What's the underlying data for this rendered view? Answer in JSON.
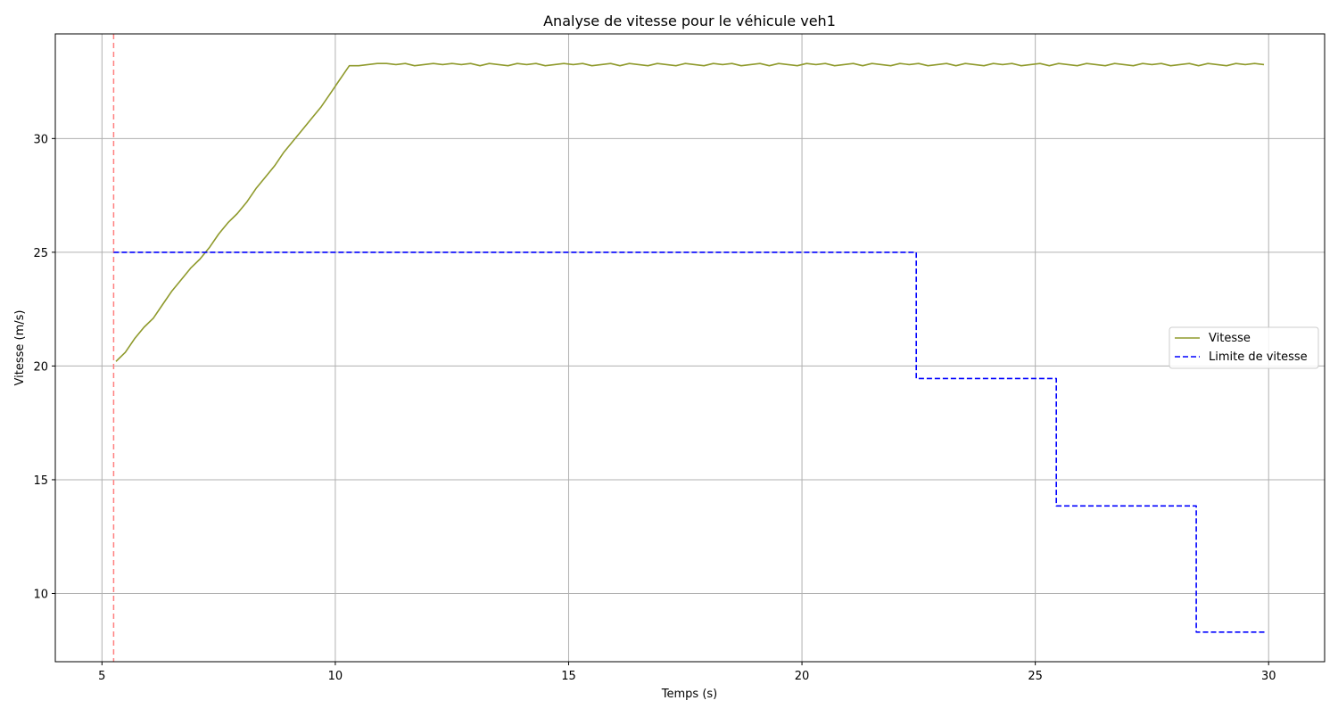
{
  "chart_data": {
    "type": "line",
    "title": "Analyse de vitesse pour le véhicule veh1",
    "xlabel": "Temps (s)",
    "ylabel": "Vitesse (m/s)",
    "xlim": [
      4.0,
      31.2
    ],
    "ylim": [
      7.0,
      34.6
    ],
    "xticks": [
      5,
      10,
      15,
      20,
      25,
      30
    ],
    "yticks": [
      10,
      15,
      20,
      25,
      30
    ],
    "grid": true,
    "legend_position": "center-right",
    "series": [
      {
        "name": "Vitesse",
        "color": "#8f9a2c",
        "style": "solid",
        "x": [
          5.3,
          5.5,
          5.7,
          5.9,
          6.1,
          6.3,
          6.5,
          6.7,
          6.9,
          7.1,
          7.3,
          7.5,
          7.7,
          7.9,
          8.1,
          8.3,
          8.5,
          8.7,
          8.9,
          9.1,
          9.3,
          9.5,
          9.7,
          9.9,
          10.1,
          10.3,
          10.5,
          10.7,
          10.9,
          11.1,
          11.3,
          11.5,
          11.7,
          11.9,
          12.1,
          12.3,
          12.5,
          12.7,
          12.9,
          13.1,
          13.3,
          13.5,
          13.7,
          13.9,
          14.1,
          14.3,
          14.5,
          14.7,
          14.9,
          15.1,
          15.3,
          15.5,
          15.7,
          15.9,
          16.1,
          16.3,
          16.5,
          16.7,
          16.9,
          17.1,
          17.3,
          17.5,
          17.7,
          17.9,
          18.1,
          18.3,
          18.5,
          18.7,
          18.9,
          19.1,
          19.3,
          19.5,
          19.7,
          19.9,
          20.1,
          20.3,
          20.5,
          20.7,
          20.9,
          21.1,
          21.3,
          21.5,
          21.7,
          21.9,
          22.1,
          22.3,
          22.5,
          22.7,
          22.9,
          23.1,
          23.3,
          23.5,
          23.7,
          23.9,
          24.1,
          24.3,
          24.5,
          24.7,
          24.9,
          25.1,
          25.3,
          25.5,
          25.7,
          25.9,
          26.1,
          26.3,
          26.5,
          26.7,
          26.9,
          27.1,
          27.3,
          27.5,
          27.7,
          27.9,
          28.1,
          28.3,
          28.5,
          28.7,
          28.9,
          29.1,
          29.3,
          29.5,
          29.7,
          29.9
        ],
        "values": [
          20.2,
          20.6,
          21.2,
          21.7,
          22.1,
          22.7,
          23.3,
          23.8,
          24.3,
          24.7,
          25.2,
          25.8,
          26.3,
          26.7,
          27.2,
          27.8,
          28.3,
          28.8,
          29.4,
          29.9,
          30.4,
          30.9,
          31.4,
          32.0,
          32.6,
          33.2,
          33.2,
          33.25,
          33.3,
          33.3,
          33.25,
          33.3,
          33.2,
          33.25,
          33.3,
          33.25,
          33.3,
          33.25,
          33.3,
          33.2,
          33.3,
          33.25,
          33.2,
          33.3,
          33.25,
          33.3,
          33.2,
          33.25,
          33.3,
          33.25,
          33.3,
          33.2,
          33.25,
          33.3,
          33.2,
          33.3,
          33.25,
          33.2,
          33.3,
          33.25,
          33.2,
          33.3,
          33.25,
          33.2,
          33.3,
          33.25,
          33.3,
          33.2,
          33.25,
          33.3,
          33.2,
          33.3,
          33.25,
          33.2,
          33.3,
          33.25,
          33.3,
          33.2,
          33.25,
          33.3,
          33.2,
          33.3,
          33.25,
          33.2,
          33.3,
          33.25,
          33.3,
          33.2,
          33.25,
          33.3,
          33.2,
          33.3,
          33.25,
          33.2,
          33.3,
          33.25,
          33.3,
          33.2,
          33.25,
          33.3,
          33.2,
          33.3,
          33.25,
          33.2,
          33.3,
          33.25,
          33.2,
          33.3,
          33.25,
          33.2,
          33.3,
          33.25,
          33.3,
          33.2,
          33.25,
          33.3,
          33.2,
          33.3,
          33.25,
          33.2,
          33.3,
          33.25,
          33.3,
          33.25
        ]
      },
      {
        "name": "Limite de vitesse",
        "color": "#0000ff",
        "style": "dashed",
        "step": true,
        "x": [
          5.25,
          22.45,
          22.45,
          25.45,
          25.45,
          28.45,
          28.45,
          29.95
        ],
        "values": [
          25.0,
          25.0,
          19.45,
          19.45,
          13.85,
          13.85,
          8.3,
          8.3
        ]
      }
    ],
    "annotations": [
      {
        "type": "vline",
        "x": 5.25,
        "color": "#ff8080",
        "style": "dashed"
      }
    ]
  }
}
